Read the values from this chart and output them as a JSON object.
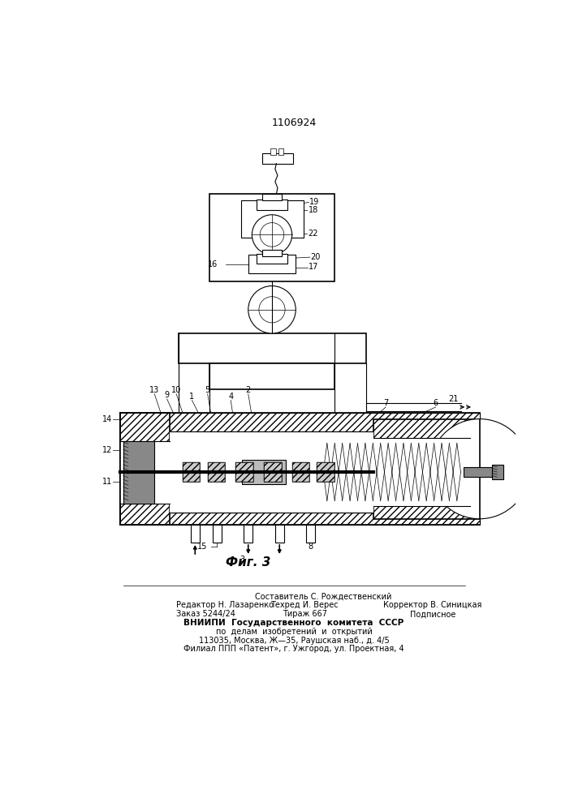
{
  "patent_number": "1106924",
  "fig_label": "Фиг. 3",
  "background_color": "#ffffff",
  "line_color": "#000000",
  "footer": {
    "line1": "Составитель С. Рождественский",
    "line2_left": "Редактор Н. Лазаренко",
    "line2_mid": "Техред И. Верес",
    "line2_right": "Корректор В. Синицкая",
    "line3_left": "Заказ 5244/24",
    "line3_mid": "Тираж 667",
    "line3_right": "Подписное",
    "line4": "ВНИИПИ  Государственного  комитета  СССР",
    "line5": "по  делам  изобретений  и  открытий",
    "line6": "113035, Москва, Ж—35, Раушская наб., д. 4/5",
    "line7": "Филиал ППП «Патент», г. Ужгород, ул. Проектная, 4"
  }
}
